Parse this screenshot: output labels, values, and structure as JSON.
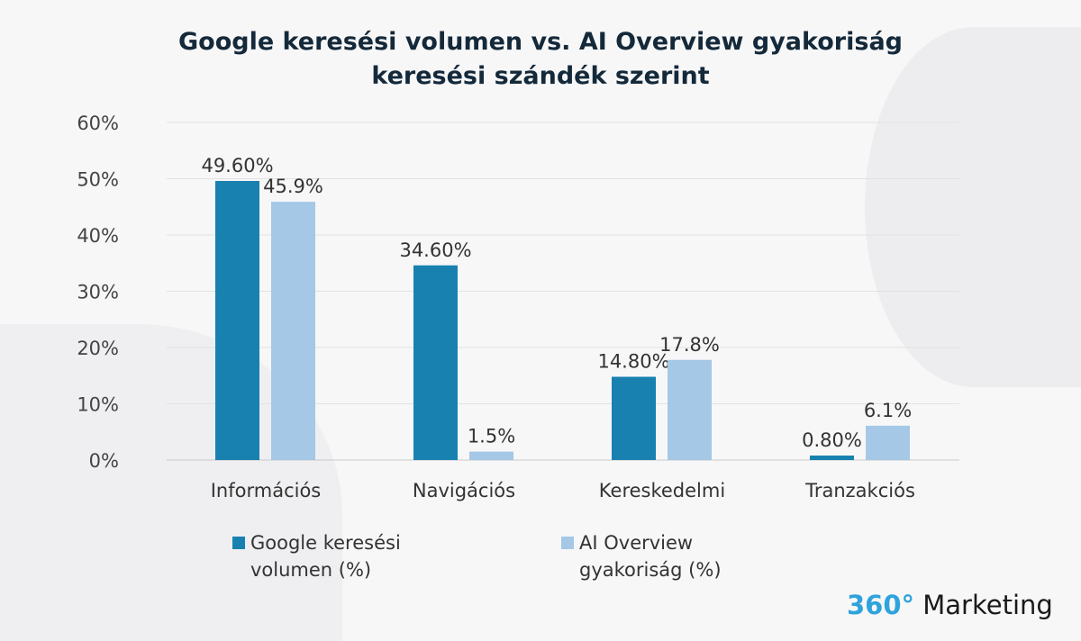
{
  "chart_data": {
    "type": "bar",
    "title": "Google keresési volumen vs. AI Overview gyakoriság keresési szándék szerint",
    "title_lines": [
      "Google keresési volumen vs. AI Overview gyakoriság",
      "keresési szándék szerint"
    ],
    "categories": [
      "Információs",
      "Navigációs",
      "Kereskedelmi",
      "Tranzakciós"
    ],
    "series": [
      {
        "name": "Google keresési volumen (%)",
        "name_lines": [
          "Google keresési",
          "volumen (%)"
        ],
        "values": [
          49.6,
          34.6,
          14.8,
          0.8
        ],
        "labels": [
          "49.60%",
          "34.60%",
          "14.80%",
          "0.80%"
        ],
        "color": "#1881b0"
      },
      {
        "name": "AI Overview gyakoriság (%)",
        "name_lines": [
          "AI Overview",
          "gyakoriság (%)"
        ],
        "values": [
          45.9,
          1.5,
          17.8,
          6.1
        ],
        "labels": [
          "45.9%",
          "1.5%",
          "17.8%",
          "6.1%"
        ],
        "color": "#a4c8e6"
      }
    ],
    "yticks": [
      "0%",
      "10%",
      "20%",
      "30%",
      "40%",
      "50%",
      "60%"
    ],
    "ylim": [
      0,
      60
    ],
    "grid": true,
    "legend_position": "bottom-left"
  },
  "logo": {
    "accent": "360°",
    "text": " Marketing",
    "accent_color": "#2fa3dc"
  }
}
